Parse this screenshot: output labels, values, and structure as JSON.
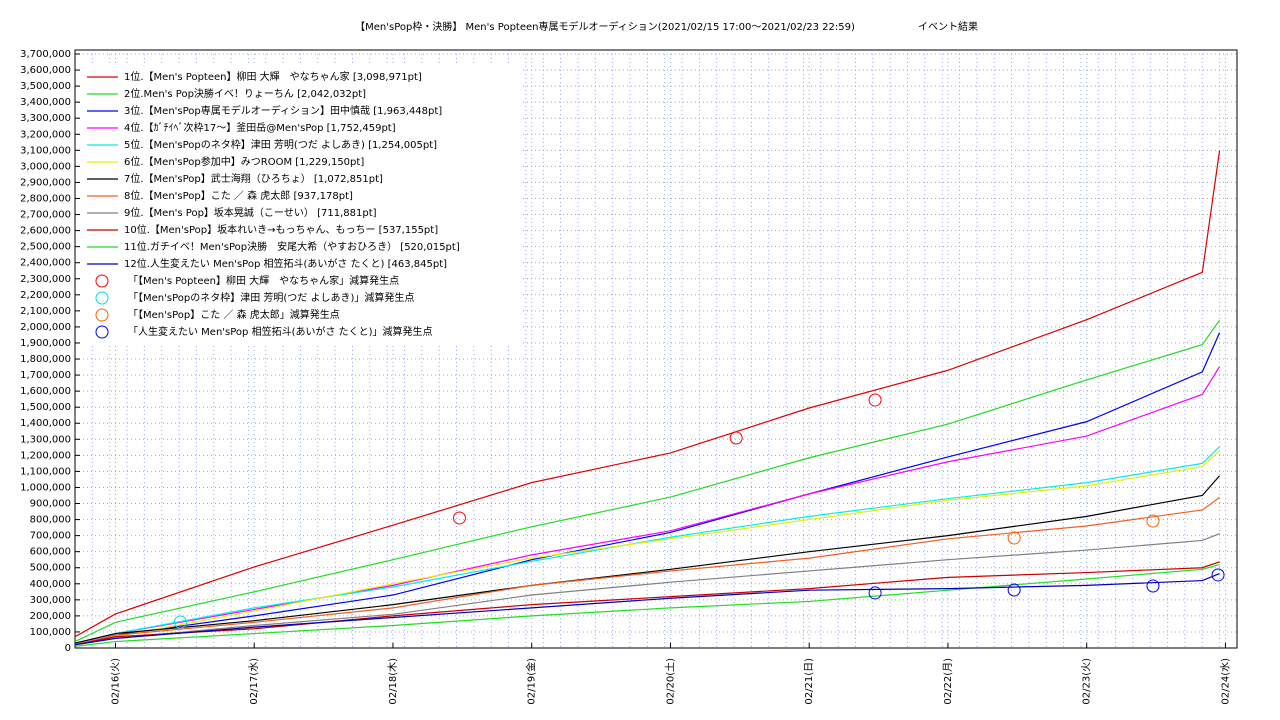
{
  "chart_data": {
    "type": "line",
    "title": "【Men'sPop枠・決勝】 Men's Popteen専属モデルオーディション(2021/02/15 17:00～2021/02/23 22:59)",
    "subtitle": "イベント結果",
    "x": [
      "02/15 17:00",
      "02/16 00:00",
      "02/17 00:00",
      "02/18 00:00",
      "02/19 00:00",
      "02/20 00:00",
      "02/21 00:00",
      "02/22 00:00",
      "02/23 00:00",
      "02/23 20:00",
      "02/23 22:59"
    ],
    "xlim": [
      "02/15 17:00",
      "02/24 02:00"
    ],
    "xticks": [
      {
        "value": "02/16 00:00",
        "label": "02/16(火)"
      },
      {
        "value": "02/17 00:00",
        "label": "02/17(水)"
      },
      {
        "value": "02/18 00:00",
        "label": "02/18(木)"
      },
      {
        "value": "02/19 00:00",
        "label": "02/19(金)"
      },
      {
        "value": "02/20 00:00",
        "label": "02/20(土)"
      },
      {
        "value": "02/21 00:00",
        "label": "02/21(日)"
      },
      {
        "value": "02/22 00:00",
        "label": "02/22(月)"
      },
      {
        "value": "02/23 00:00",
        "label": "02/23(火)"
      },
      {
        "value": "02/24 00:00",
        "label": "02/24(水)"
      }
    ],
    "ylim": [
      0,
      3700000
    ],
    "yticks": [
      0,
      {
        "value": 100000,
        "label": "100,000"
      },
      {
        "value": 200000,
        "label": "200,000"
      },
      {
        "value": 300000,
        "label": "300,000"
      },
      {
        "value": 400000,
        "label": "400,000"
      },
      {
        "value": 500000,
        "label": "500,000"
      },
      {
        "value": 600000,
        "label": "600,000"
      },
      {
        "value": 700000,
        "label": "700,000"
      },
      {
        "value": 800000,
        "label": "800,000"
      },
      {
        "value": 900000,
        "label": "900,000"
      },
      {
        "value": 1000000,
        "label": "1,000,000"
      },
      {
        "value": 1100000,
        "label": "1,100,000"
      },
      {
        "value": 1200000,
        "label": "1,200,000"
      },
      {
        "value": 1300000,
        "label": "1,300,000"
      },
      {
        "value": 1400000,
        "label": "1,400,000"
      },
      {
        "value": 1500000,
        "label": "1,500,000"
      },
      {
        "value": 1600000,
        "label": "1,600,000"
      },
      {
        "value": 1700000,
        "label": "1,700,000"
      },
      {
        "value": 1800000,
        "label": "1,800,000"
      },
      {
        "value": 1900000,
        "label": "1,900,000"
      },
      {
        "value": 2000000,
        "label": "2,000,000"
      },
      {
        "value": 2100000,
        "label": "2,100,000"
      },
      {
        "value": 2200000,
        "label": "2,200,000"
      },
      {
        "value": 2300000,
        "label": "2,300,000"
      },
      {
        "value": 2400000,
        "label": "2,400,000"
      },
      {
        "value": 2500000,
        "label": "2,500,000"
      },
      {
        "value": 2600000,
        "label": "2,600,000"
      },
      {
        "value": 2700000,
        "label": "2,700,000"
      },
      {
        "value": 2800000,
        "label": "2,800,000"
      },
      {
        "value": 2900000,
        "label": "2,900,000"
      },
      {
        "value": 3000000,
        "label": "3,000,000"
      },
      {
        "value": 3100000,
        "label": "3,100,000"
      },
      {
        "value": 3200000,
        "label": "3,200,000"
      },
      {
        "value": 3300000,
        "label": "3,300,000"
      },
      {
        "value": 3400000,
        "label": "3,400,000"
      },
      {
        "value": 3500000,
        "label": "3,500,000"
      },
      {
        "value": 3600000,
        "label": "3,600,000"
      },
      {
        "value": 3700000,
        "label": "3,700,000"
      }
    ],
    "grid": true,
    "series": [
      {
        "name": "1位.【Men's Popteen】柳田 大輝　やなちゃん家 [3,098,971pt]",
        "color": "#e00000",
        "values": [
          70000,
          212000,
          505000,
          765000,
          1030000,
          1215000,
          1495000,
          1730000,
          2045000,
          2340000,
          3098971
        ]
      },
      {
        "name": "2位.Men's Pop決勝イベ！りょーちん [2,042,032pt]",
        "color": "#22dd22",
        "values": [
          40000,
          160000,
          350000,
          550000,
          755000,
          940000,
          1185000,
          1395000,
          1670000,
          1890000,
          2042032
        ]
      },
      {
        "name": "3位.【Men'sPop専属モデルオーディション】田中慎哉 [1,963,448pt]",
        "color": "#0000ff",
        "values": [
          20000,
          80000,
          200000,
          330000,
          550000,
          720000,
          960000,
          1190000,
          1410000,
          1720000,
          1963448
        ]
      },
      {
        "name": "4位.【ｶﾞﾁｲﾍﾞ次枠17〜】釜田岳@Men'sPop [1,752,459pt]",
        "color": "#ff00ff",
        "values": [
          30000,
          90000,
          240000,
          390000,
          580000,
          730000,
          960000,
          1160000,
          1320000,
          1580000,
          1752459
        ]
      },
      {
        "name": "5位.【Men'sPopのネタ枠】津田 芳明(つだ よしあき) [1,254,005pt]",
        "color": "#00eeee",
        "values": [
          30000,
          90000,
          250000,
          380000,
          540000,
          690000,
          820000,
          930000,
          1030000,
          1150000,
          1254005
        ]
      },
      {
        "name": "6位.【Men'sPop参加中】みつROOM [1,229,150pt]",
        "color": "#eeee00",
        "values": [
          20000,
          70000,
          230000,
          400000,
          560000,
          680000,
          800000,
          920000,
          1010000,
          1130000,
          1229150
        ]
      },
      {
        "name": "7位.【Men'sPop】武士海翔（ひろちょ） [1,072,851pt]",
        "color": "#000000",
        "values": [
          30000,
          90000,
          170000,
          270000,
          390000,
          490000,
          600000,
          700000,
          820000,
          950000,
          1072851
        ]
      },
      {
        "name": "8位.【Men'sPop】こた ／ 森 虎太郎 [937,178pt]",
        "color": "#f06020",
        "values": [
          20000,
          80000,
          160000,
          250000,
          390000,
          480000,
          560000,
          680000,
          760000,
          860000,
          937178
        ]
      },
      {
        "name": "9位.【Men's Pop】坂本晃誠（こーせい） [711,881pt]",
        "color": "#808080",
        "values": [
          20000,
          60000,
          140000,
          210000,
          330000,
          410000,
          480000,
          550000,
          610000,
          670000,
          711881
        ]
      },
      {
        "name": "10位.【Men'sPop】坂本れいき→もっちゃん、もっちー [537,155pt]",
        "color": "#c80000",
        "values": [
          20000,
          70000,
          120000,
          200000,
          270000,
          320000,
          370000,
          440000,
          470000,
          500000,
          537155
        ]
      },
      {
        "name": "11位.ガチイベ！Men'sPop決勝　安尾大希（やすおひろき） [520,015pt]",
        "color": "#20e020",
        "values": [
          10000,
          40000,
          90000,
          140000,
          200000,
          250000,
          290000,
          360000,
          430000,
          490000,
          520015
        ]
      },
      {
        "name": "12位.人生変えたい Men'sPop 相笠拓斗(あいがさ たくと) [463,845pt]",
        "color": "#0000c0",
        "values": [
          20000,
          60000,
          130000,
          190000,
          250000,
          310000,
          360000,
          370000,
          390000,
          420000,
          463845
        ]
      },
      {
        "name": "「【Men's Popteen】柳田 大輝　やなちゃん家」減算発生点",
        "color": "#ff0000",
        "marker": "circle",
        "x": [
          "02/18 11:30",
          "02/20 11:22",
          "02/21 11:24"
        ],
        "values": [
          810000,
          1308000,
          1545000
        ]
      },
      {
        "name": "「【Men'sPopのネタ枠】津田 芳明(つだ よしあき)」減算発生点",
        "color": "#00e0e0",
        "marker": "circle",
        "x": [
          "02/16 11:14"
        ],
        "values": [
          162000
        ]
      },
      {
        "name": "「【Men'sPop】こた ／ 森 虎太郎」減算発生点",
        "color": "#ff6000",
        "marker": "circle",
        "x": [
          "02/22 11:27",
          "02/23 11:28"
        ],
        "values": [
          685000,
          791000
        ]
      },
      {
        "name": "「人生変えたい Men'sPop 相笠拓斗(あいがさ たくと)」減算発生点",
        "color": "#0000ff",
        "marker": "circle",
        "x": [
          "02/21 11:24",
          "02/22 11:27",
          "02/23 11:28",
          "02/23 22:43"
        ],
        "values": [
          343000,
          361000,
          386000,
          455000
        ]
      }
    ]
  }
}
